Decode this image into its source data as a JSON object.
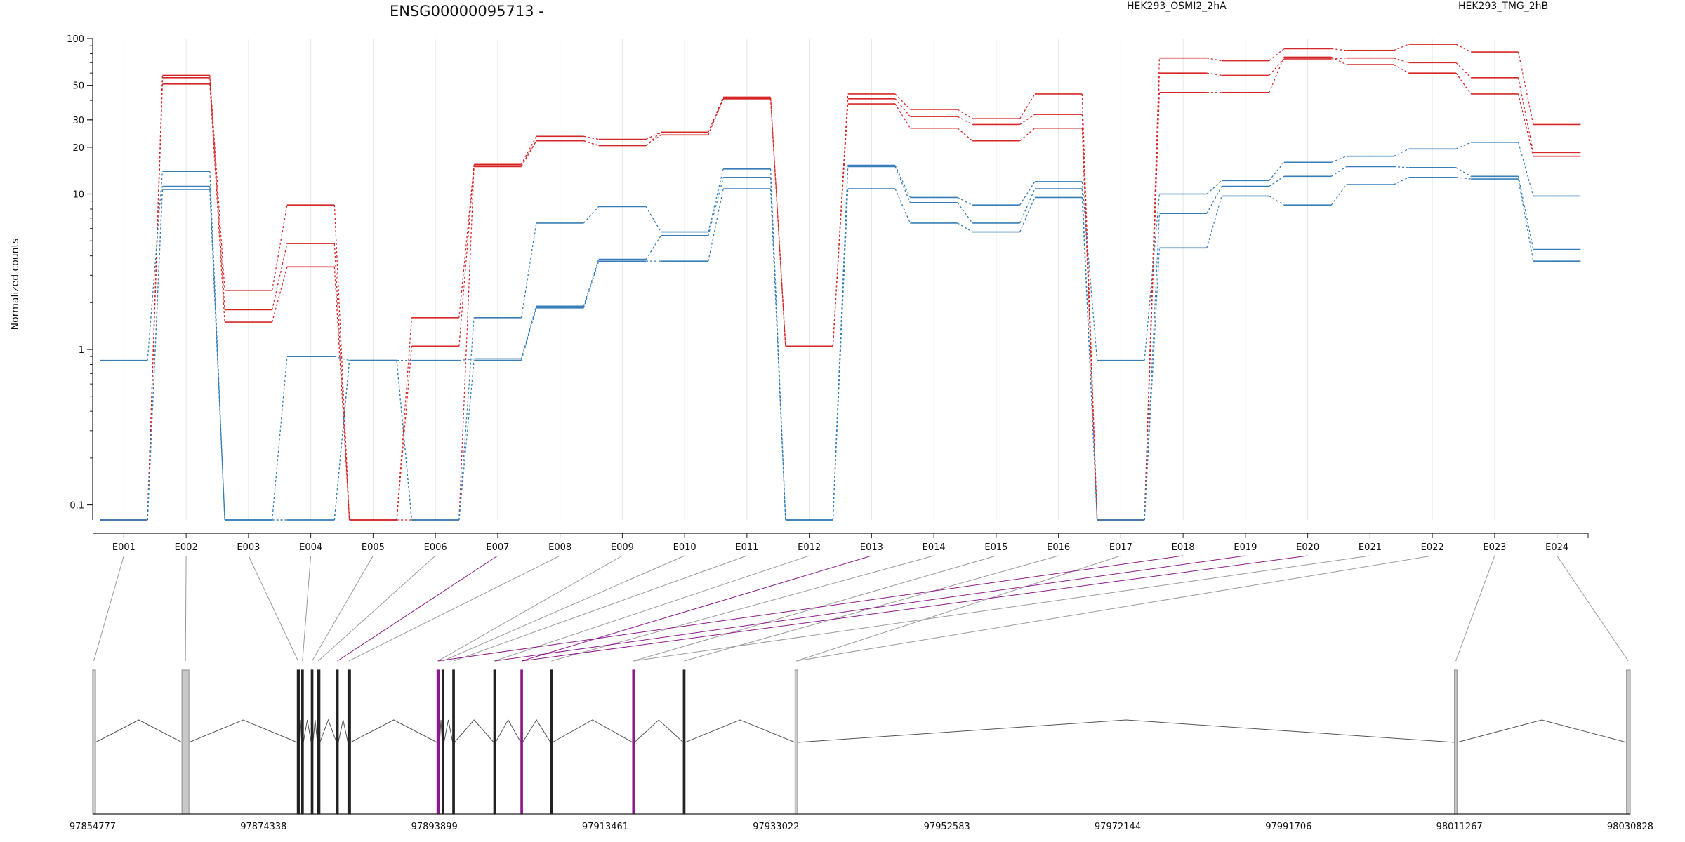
{
  "chart_data": {
    "type": "line",
    "title": "ENSG00000095713 -",
    "ylabel": "Normalized counts",
    "xlabel": "",
    "y_scale": "log",
    "ylim": [
      0.08,
      100
    ],
    "y_ticks": [
      {
        "v": 100,
        "label": "100"
      },
      {
        "v": 50,
        "label": "50"
      },
      {
        "v": 30,
        "label": "30"
      },
      {
        "v": 20,
        "label": "20"
      },
      {
        "v": 10,
        "label": "10"
      },
      {
        "v": 1,
        "label": "1"
      },
      {
        "v": 0.1,
        "label": "0.1"
      }
    ],
    "categories": [
      "E001",
      "E002",
      "E003",
      "E004",
      "E005",
      "E006",
      "E007",
      "E008",
      "E009",
      "E010",
      "E011",
      "E012",
      "E013",
      "E014",
      "E015",
      "E016",
      "E017",
      "E018",
      "E019",
      "E020",
      "E021",
      "E022",
      "E023",
      "E024"
    ],
    "legend": [
      {
        "name": "HEK293_OSMI2_2hA",
        "color": "#d62728"
      },
      {
        "name": "HEK293_TMG_2hB",
        "color": "#377eb8"
      }
    ],
    "series": [
      {
        "group": "HEK293_OSMI2_2hA",
        "color": "#d62728",
        "values": [
          0.08,
          58,
          2.4,
          8.5,
          0.08,
          1.6,
          15.5,
          23.5,
          22.5,
          25,
          42,
          1.05,
          44,
          35,
          30.5,
          44,
          0.08,
          75,
          72,
          86,
          84,
          92,
          82,
          28
        ]
      },
      {
        "group": "HEK293_OSMI2_2hA",
        "color": "#d62728",
        "values": [
          0.08,
          56,
          1.8,
          4.8,
          0.08,
          1.05,
          15.2,
          22,
          20.5,
          25,
          41,
          1.05,
          41,
          31.5,
          28,
          32.5,
          0.08,
          60,
          58,
          74,
          75,
          70,
          56,
          18.5
        ]
      },
      {
        "group": "HEK293_OSMI2_2hA",
        "color": "#d62728",
        "values": [
          0.08,
          51,
          1.5,
          3.4,
          0.08,
          0.08,
          15,
          22,
          20.5,
          24,
          41,
          1.05,
          38,
          26.5,
          22,
          26.5,
          0.08,
          45,
          45,
          76,
          68,
          60,
          44,
          17.5
        ]
      },
      {
        "group": "HEK293_TMG_2hB",
        "color": "#377eb8",
        "values": [
          0.85,
          14,
          0.08,
          0.9,
          0.85,
          0.08,
          1.6,
          6.5,
          8.3,
          5.7,
          14.5,
          0.08,
          15.3,
          9.5,
          8.5,
          12,
          0.85,
          10,
          12.2,
          16,
          17.5,
          19.5,
          21.5,
          9.7
        ]
      },
      {
        "group": "HEK293_TMG_2hB",
        "color": "#377eb8",
        "values": [
          0.08,
          11.2,
          0.08,
          0.08,
          0.85,
          0.85,
          0.87,
          1.9,
          3.8,
          5.4,
          12.8,
          0.08,
          15,
          8.8,
          6.5,
          10.8,
          0.08,
          7.5,
          11.2,
          13,
          15,
          14.8,
          13,
          4.4
        ]
      },
      {
        "group": "HEK293_TMG_2hB",
        "color": "#377eb8",
        "values": [
          0.08,
          10.7,
          0.08,
          0.08,
          0.85,
          0.08,
          0.85,
          1.85,
          3.7,
          3.7,
          10.8,
          0.08,
          10.8,
          6.5,
          5.7,
          9.5,
          0.08,
          4.5,
          9.7,
          8.5,
          11.5,
          12.8,
          12.5,
          3.7
        ]
      }
    ],
    "gene_model": {
      "coordinate_range": [
        97854777,
        98030828
      ],
      "coordinate_ticks": [
        "97854777",
        "97874338",
        "97893899",
        "97913461",
        "97933022",
        "97952583",
        "97972144",
        "97991706",
        "98011267",
        "98030828"
      ],
      "exons": [
        {
          "start": 97854777,
          "end": 97855100,
          "color": "gray"
        },
        {
          "start": 97865000,
          "end": 97865800,
          "color": "gray"
        },
        {
          "start": 97878200,
          "end": 97878450,
          "color": "black"
        },
        {
          "start": 97878700,
          "end": 97878900,
          "color": "black"
        },
        {
          "start": 97879800,
          "end": 97880000,
          "color": "black"
        },
        {
          "start": 97880500,
          "end": 97880800,
          "color": "black"
        },
        {
          "start": 97882700,
          "end": 97882900,
          "color": "black"
        },
        {
          "start": 97884000,
          "end": 97884300,
          "color": "black"
        },
        {
          "start": 97894200,
          "end": 97894500,
          "color": "purple"
        },
        {
          "start": 97894800,
          "end": 97895000,
          "color": "black"
        },
        {
          "start": 97896000,
          "end": 97896200,
          "color": "black"
        },
        {
          "start": 97900700,
          "end": 97900900,
          "color": "black"
        },
        {
          "start": 97903800,
          "end": 97904000,
          "color": "purple"
        },
        {
          "start": 97907200,
          "end": 97907400,
          "color": "black"
        },
        {
          "start": 97916600,
          "end": 97916800,
          "color": "purple"
        },
        {
          "start": 97922400,
          "end": 97922600,
          "color": "black"
        },
        {
          "start": 97935200,
          "end": 97935500,
          "color": "gray"
        },
        {
          "start": 98010700,
          "end": 98011000,
          "color": "gray"
        },
        {
          "start": 98030400,
          "end": 98030828,
          "color": "gray"
        }
      ],
      "connector_targets": [
        97854900,
        97865400,
        97878300,
        97878800,
        97879900,
        97880600,
        97882800,
        97884100,
        97894300,
        97894900,
        97896100,
        97900800,
        97903900,
        97907300,
        97916700,
        97922500,
        97935350,
        97894300,
        97900800,
        97903900,
        97916700,
        97935350,
        98010850,
        98030600
      ],
      "connector_colors": [
        "gray",
        "gray",
        "gray",
        "gray",
        "gray",
        "gray",
        "purple",
        "gray",
        "gray",
        "gray",
        "gray",
        "gray",
        "purple",
        "gray",
        "gray",
        "gray",
        "gray",
        "purple",
        "purple",
        "purple",
        "gray",
        "gray",
        "gray",
        "gray"
      ]
    }
  },
  "colors": {
    "treatment": "#d62728",
    "control": "#377eb8",
    "purple": "#8b1a8b",
    "gray": "#9a9a9a",
    "grid": "#e6e6e6"
  }
}
